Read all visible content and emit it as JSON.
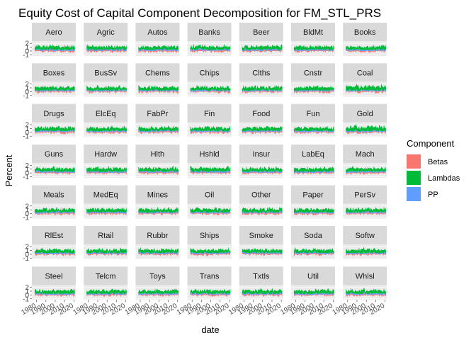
{
  "chart_data": {
    "type": "area",
    "title": "Equity Cost of Capital Component Decomposition for FM_STL_PRS",
    "xlabel": "date",
    "ylabel": "Percent",
    "facets": [
      "Aero",
      "Agric",
      "Autos",
      "Banks",
      "Beer",
      "BldMt",
      "Books",
      "Boxes",
      "BusSv",
      "Chems",
      "Chips",
      "Clths",
      "Cnstr",
      "Coal",
      "Drugs",
      "ElcEq",
      "FabPr",
      "Fin",
      "Food",
      "Fun",
      "Gold",
      "Guns",
      "Hardw",
      "Hlth",
      "Hshld",
      "Insur",
      "LabEq",
      "Mach",
      "Meals",
      "MedEq",
      "Mines",
      "Oil",
      "Other",
      "Paper",
      "PerSv",
      "RlEst",
      "Rtail",
      "Rubbr",
      "Ships",
      "Smoke",
      "Soda",
      "Softw",
      "Steel",
      "Telcm",
      "Toys",
      "Trans",
      "Txtls",
      "Util",
      "Whlsl"
    ],
    "facet_rows": 7,
    "facet_cols": 7,
    "x_ticks": [
      "1980",
      "1990",
      "2000",
      "2010",
      "2020"
    ],
    "xlim": [
      1975,
      2022
    ],
    "y_ticks": [
      "2",
      "1",
      "0",
      "-1"
    ],
    "ylim": [
      -1.3,
      2.6
    ],
    "legend": {
      "title": "Component",
      "position": "right",
      "items": [
        {
          "name": "Betas",
          "color": "#F8766D"
        },
        {
          "name": "Lambdas",
          "color": "#00BA38"
        },
        {
          "name": "PP",
          "color": "#619CFF"
        }
      ]
    },
    "series": [
      {
        "name": "Betas",
        "color": "#F8766D",
        "typical_range": [
          -0.4,
          0.4
        ]
      },
      {
        "name": "Lambdas",
        "color": "#00BA38",
        "typical_range": [
          0.5,
          1.2
        ]
      },
      {
        "name": "PP",
        "color": "#619CFF",
        "typical_range": [
          0,
          0.4
        ]
      }
    ],
    "panel_background": "#EBEBEB",
    "strip_background": "#D9D9D9",
    "grid": true
  }
}
